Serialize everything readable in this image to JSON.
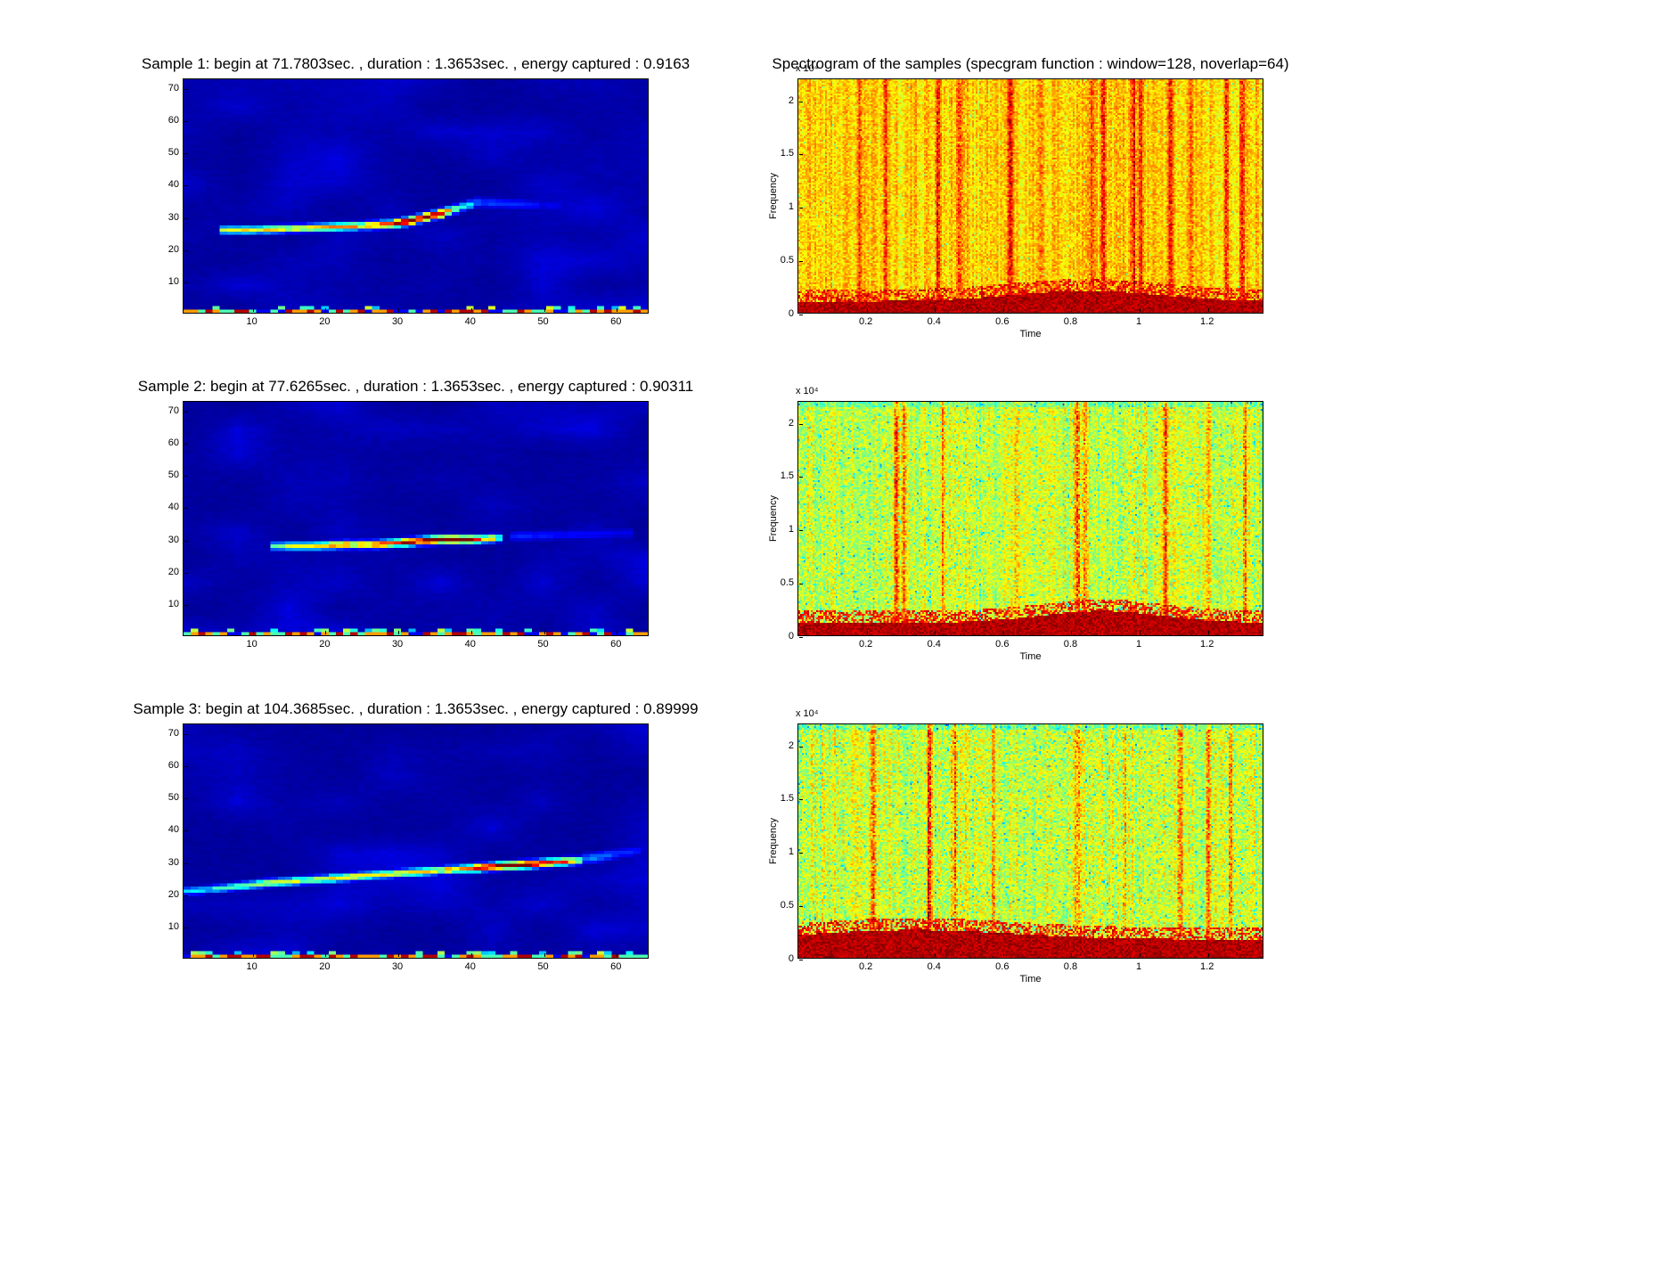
{
  "page": {
    "background": "#ffffff",
    "colormap": "jet"
  },
  "chart_data": [
    {
      "id": "sample-1-scalogram",
      "type": "heatmap",
      "kind": "scalogram",
      "colormap": "jet",
      "title": "Sample 1: begin at 71.7803sec. , duration : 1.3653sec. , energy captured : 0.9163",
      "x_min": 0.5,
      "x_max": 64.5,
      "y_min": 0,
      "y_max": 73,
      "x_tick_values": [
        10,
        20,
        30,
        40,
        50,
        60
      ],
      "x_tick_labels": [
        "10",
        "20",
        "30",
        "40",
        "50",
        "60"
      ],
      "y_tick_values": [
        10,
        20,
        30,
        40,
        50,
        60,
        70
      ],
      "y_tick_labels": [
        "10",
        "20",
        "30",
        "40",
        "50",
        "60",
        "70"
      ],
      "grid": false,
      "description": "Dark blue map with a bright chirp ridge near scale 26-35 ending in a red hot spot, and a multicolored noise strip along the bottom row",
      "ridge": [
        [
          6,
          26,
          0.5
        ],
        [
          10,
          26,
          0.6
        ],
        [
          16,
          26.5,
          0.6
        ],
        [
          22,
          27,
          0.65
        ],
        [
          27,
          27.5,
          0.7
        ],
        [
          30,
          28,
          0.85
        ],
        [
          32,
          29,
          0.95
        ],
        [
          34,
          30,
          1.0
        ],
        [
          36,
          31,
          0.8
        ],
        [
          38,
          32.5,
          0.5
        ],
        [
          40,
          34,
          0.3
        ]
      ],
      "tail": [
        [
          41,
          34.5,
          0.18
        ],
        [
          46,
          34,
          0.15
        ],
        [
          52,
          33.5,
          0.1
        ]
      ],
      "bottom_band": true,
      "seed": 11
    },
    {
      "id": "spectrogram-sample-1",
      "type": "heatmap",
      "kind": "spectrogram",
      "colormap": "jet",
      "title": "Spectrogram of the samples (specgram function : window=128, noverlap=64)",
      "xlabel": "Time",
      "ylabel": "Frequency",
      "y_exponent": "x 10⁴",
      "x_min": 0,
      "x_max": 1.3653,
      "y_min": 0,
      "y_max": 2.205,
      "x_tick_values": [
        0.2,
        0.4,
        0.6,
        0.8,
        1,
        1.2
      ],
      "x_tick_labels": [
        "0.2",
        "0.4",
        "0.6",
        "0.8",
        "1",
        "1.2"
      ],
      "y_tick_values": [
        0,
        0.5,
        1,
        1.5,
        2
      ],
      "y_tick_labels": [
        "0",
        "0.5",
        "1",
        "1.5",
        "2"
      ],
      "grid": false,
      "description": "Orange-yellow broadband noise with dark red vertical transients and a dark red low-frequency band along the bottom edge",
      "base": 0.67,
      "noise": 0.07,
      "column_noise": 0.05,
      "speck_prob": 0.01,
      "speck_depth": 0.12,
      "top_tint_frac": 0,
      "top_tint": 0,
      "band_frac": 0.045,
      "band_bump": 0.045,
      "band_center": 0.62,
      "band_width": 0.22,
      "streaks": [
        [
          0.13,
          0.16
        ],
        [
          0.185,
          0.2
        ],
        [
          0.3,
          0.22
        ],
        [
          0.345,
          0.18
        ],
        [
          0.455,
          0.25
        ],
        [
          0.52,
          0.14
        ],
        [
          0.63,
          0.16
        ],
        [
          0.655,
          0.2
        ],
        [
          0.72,
          0.22
        ],
        [
          0.735,
          0.18
        ],
        [
          0.8,
          0.2
        ],
        [
          0.845,
          0.14
        ],
        [
          0.92,
          0.22
        ],
        [
          0.955,
          0.18
        ]
      ],
      "seed": 21
    },
    {
      "id": "sample-2-scalogram",
      "type": "heatmap",
      "kind": "scalogram",
      "colormap": "jet",
      "title": "Sample 2: begin at 77.6265sec. , duration : 1.3653sec. , energy captured : 0.90311",
      "x_min": 0.5,
      "x_max": 64.5,
      "y_min": 0,
      "y_max": 73,
      "x_tick_values": [
        10,
        20,
        30,
        40,
        50,
        60
      ],
      "x_tick_labels": [
        "10",
        "20",
        "30",
        "40",
        "50",
        "60"
      ],
      "y_tick_values": [
        10,
        20,
        30,
        40,
        50,
        60,
        70
      ],
      "y_tick_labels": [
        "10",
        "20",
        "30",
        "40",
        "50",
        "60",
        "70"
      ],
      "grid": false,
      "description": "Dark blue map with a nearly flat bright ridge around scale 28-31 with a long red hot segment, and a noise strip along the bottom row",
      "ridge": [
        [
          13,
          28,
          0.45
        ],
        [
          18,
          28,
          0.6
        ],
        [
          23,
          28.5,
          0.7
        ],
        [
          27,
          28.5,
          0.75
        ],
        [
          30,
          29,
          0.85
        ],
        [
          33,
          29.5,
          0.95
        ],
        [
          36,
          30,
          1.0
        ],
        [
          39,
          30,
          1.0
        ],
        [
          41,
          30,
          0.85
        ],
        [
          44,
          30.5,
          0.5
        ]
      ],
      "tail": [
        [
          46,
          31,
          0.14
        ],
        [
          54,
          31.5,
          0.12
        ],
        [
          62,
          32,
          0.1
        ]
      ],
      "bottom_band": true,
      "seed": 12
    },
    {
      "id": "spectrogram-sample-2",
      "type": "heatmap",
      "kind": "spectrogram",
      "colormap": "jet",
      "xlabel": "Time",
      "ylabel": "Frequency",
      "y_exponent": "x 10⁴",
      "x_min": 0,
      "x_max": 1.3653,
      "y_min": 0,
      "y_max": 2.205,
      "x_tick_values": [
        0.2,
        0.4,
        0.6,
        0.8,
        1,
        1.2
      ],
      "x_tick_labels": [
        "0.2",
        "0.4",
        "0.6",
        "0.8",
        "1",
        "1.2"
      ],
      "y_tick_values": [
        0,
        0.5,
        1,
        1.5,
        2
      ],
      "y_tick_labels": [
        "0",
        "0.5",
        "1",
        "1.5",
        "2"
      ],
      "grid": false,
      "description": "Yellow-green speckled noise with cyan flecks, red vertical transients and a dark red low-frequency band along the bottom edge",
      "base": 0.58,
      "noise": 0.08,
      "column_noise": 0.06,
      "speck_prob": 0.05,
      "speck_depth": 0.18,
      "top_tint_frac": 0.02,
      "top_tint": 0.08,
      "band_frac": 0.05,
      "band_bump": 0.05,
      "band_center": 0.65,
      "band_width": 0.18,
      "streaks": [
        [
          0.21,
          0.28
        ],
        [
          0.225,
          0.2
        ],
        [
          0.31,
          0.18
        ],
        [
          0.47,
          0.14
        ],
        [
          0.6,
          0.3
        ],
        [
          0.615,
          0.22
        ],
        [
          0.79,
          0.26
        ],
        [
          0.88,
          0.14
        ],
        [
          0.96,
          0.2
        ]
      ],
      "seed": 22
    },
    {
      "id": "sample-3-scalogram",
      "type": "heatmap",
      "kind": "scalogram",
      "colormap": "jet",
      "title": "Sample 3: begin at 104.3685sec. , duration : 1.3653sec. , energy captured : 0.89999",
      "x_min": 0.5,
      "x_max": 64.5,
      "y_min": 0,
      "y_max": 73,
      "x_tick_values": [
        10,
        20,
        30,
        40,
        50,
        60
      ],
      "x_tick_labels": [
        "10",
        "20",
        "30",
        "40",
        "50",
        "60"
      ],
      "y_tick_values": [
        10,
        20,
        30,
        40,
        50,
        60,
        70
      ],
      "y_tick_labels": [
        "10",
        "20",
        "30",
        "40",
        "50",
        "60",
        "70"
      ],
      "grid": false,
      "description": "Dark blue map with a long rising bright ridge from scale 21 to 31 brightening near its end, and a noise strip along the bottom row",
      "ridge": [
        [
          1,
          21,
          0.3
        ],
        [
          6,
          22,
          0.4
        ],
        [
          12,
          23.5,
          0.5
        ],
        [
          18,
          24.5,
          0.55
        ],
        [
          24,
          25.5,
          0.6
        ],
        [
          30,
          26.5,
          0.6
        ],
        [
          36,
          27.5,
          0.65
        ],
        [
          40,
          28,
          0.8
        ],
        [
          44,
          28.8,
          0.9
        ],
        [
          48,
          29.3,
          0.95
        ],
        [
          52,
          30,
          0.8
        ],
        [
          55,
          30.5,
          0.5
        ]
      ],
      "tail": [
        [
          56,
          31,
          0.25
        ],
        [
          59,
          32,
          0.2
        ],
        [
          63,
          33.5,
          0.12
        ]
      ],
      "bottom_band": true,
      "seed": 13
    },
    {
      "id": "spectrogram-sample-3",
      "type": "heatmap",
      "kind": "spectrogram",
      "colormap": "jet",
      "xlabel": "Time",
      "ylabel": "Frequency",
      "y_exponent": "x 10⁴",
      "x_min": 0,
      "x_max": 1.3653,
      "y_min": 0,
      "y_max": 2.205,
      "x_tick_values": [
        0.2,
        0.4,
        0.6,
        0.8,
        1,
        1.2
      ],
      "x_tick_labels": [
        "0.2",
        "0.4",
        "0.6",
        "0.8",
        "1",
        "1.2"
      ],
      "y_tick_values": [
        0,
        0.5,
        1,
        1.5,
        2
      ],
      "y_tick_labels": [
        "0",
        "0.5",
        "1",
        "1.5",
        "2"
      ],
      "grid": false,
      "description": "Yellow-green speckled noise with cyan flecks, red vertical transients and a thicker dark red low-frequency band along the bottom edge",
      "base": 0.58,
      "noise": 0.09,
      "column_noise": 0.06,
      "speck_prob": 0.05,
      "speck_depth": 0.18,
      "top_tint_frac": 0.02,
      "top_tint": 0.08,
      "band_frac": 0.075,
      "band_bump": 0.04,
      "band_center": 0.25,
      "band_width": 0.3,
      "streaks": [
        [
          0.16,
          0.2
        ],
        [
          0.28,
          0.3
        ],
        [
          0.335,
          0.22
        ],
        [
          0.42,
          0.16
        ],
        [
          0.6,
          0.18
        ],
        [
          0.7,
          0.14
        ],
        [
          0.82,
          0.24
        ],
        [
          0.88,
          0.2
        ],
        [
          0.93,
          0.16
        ]
      ],
      "seed": 23
    }
  ]
}
